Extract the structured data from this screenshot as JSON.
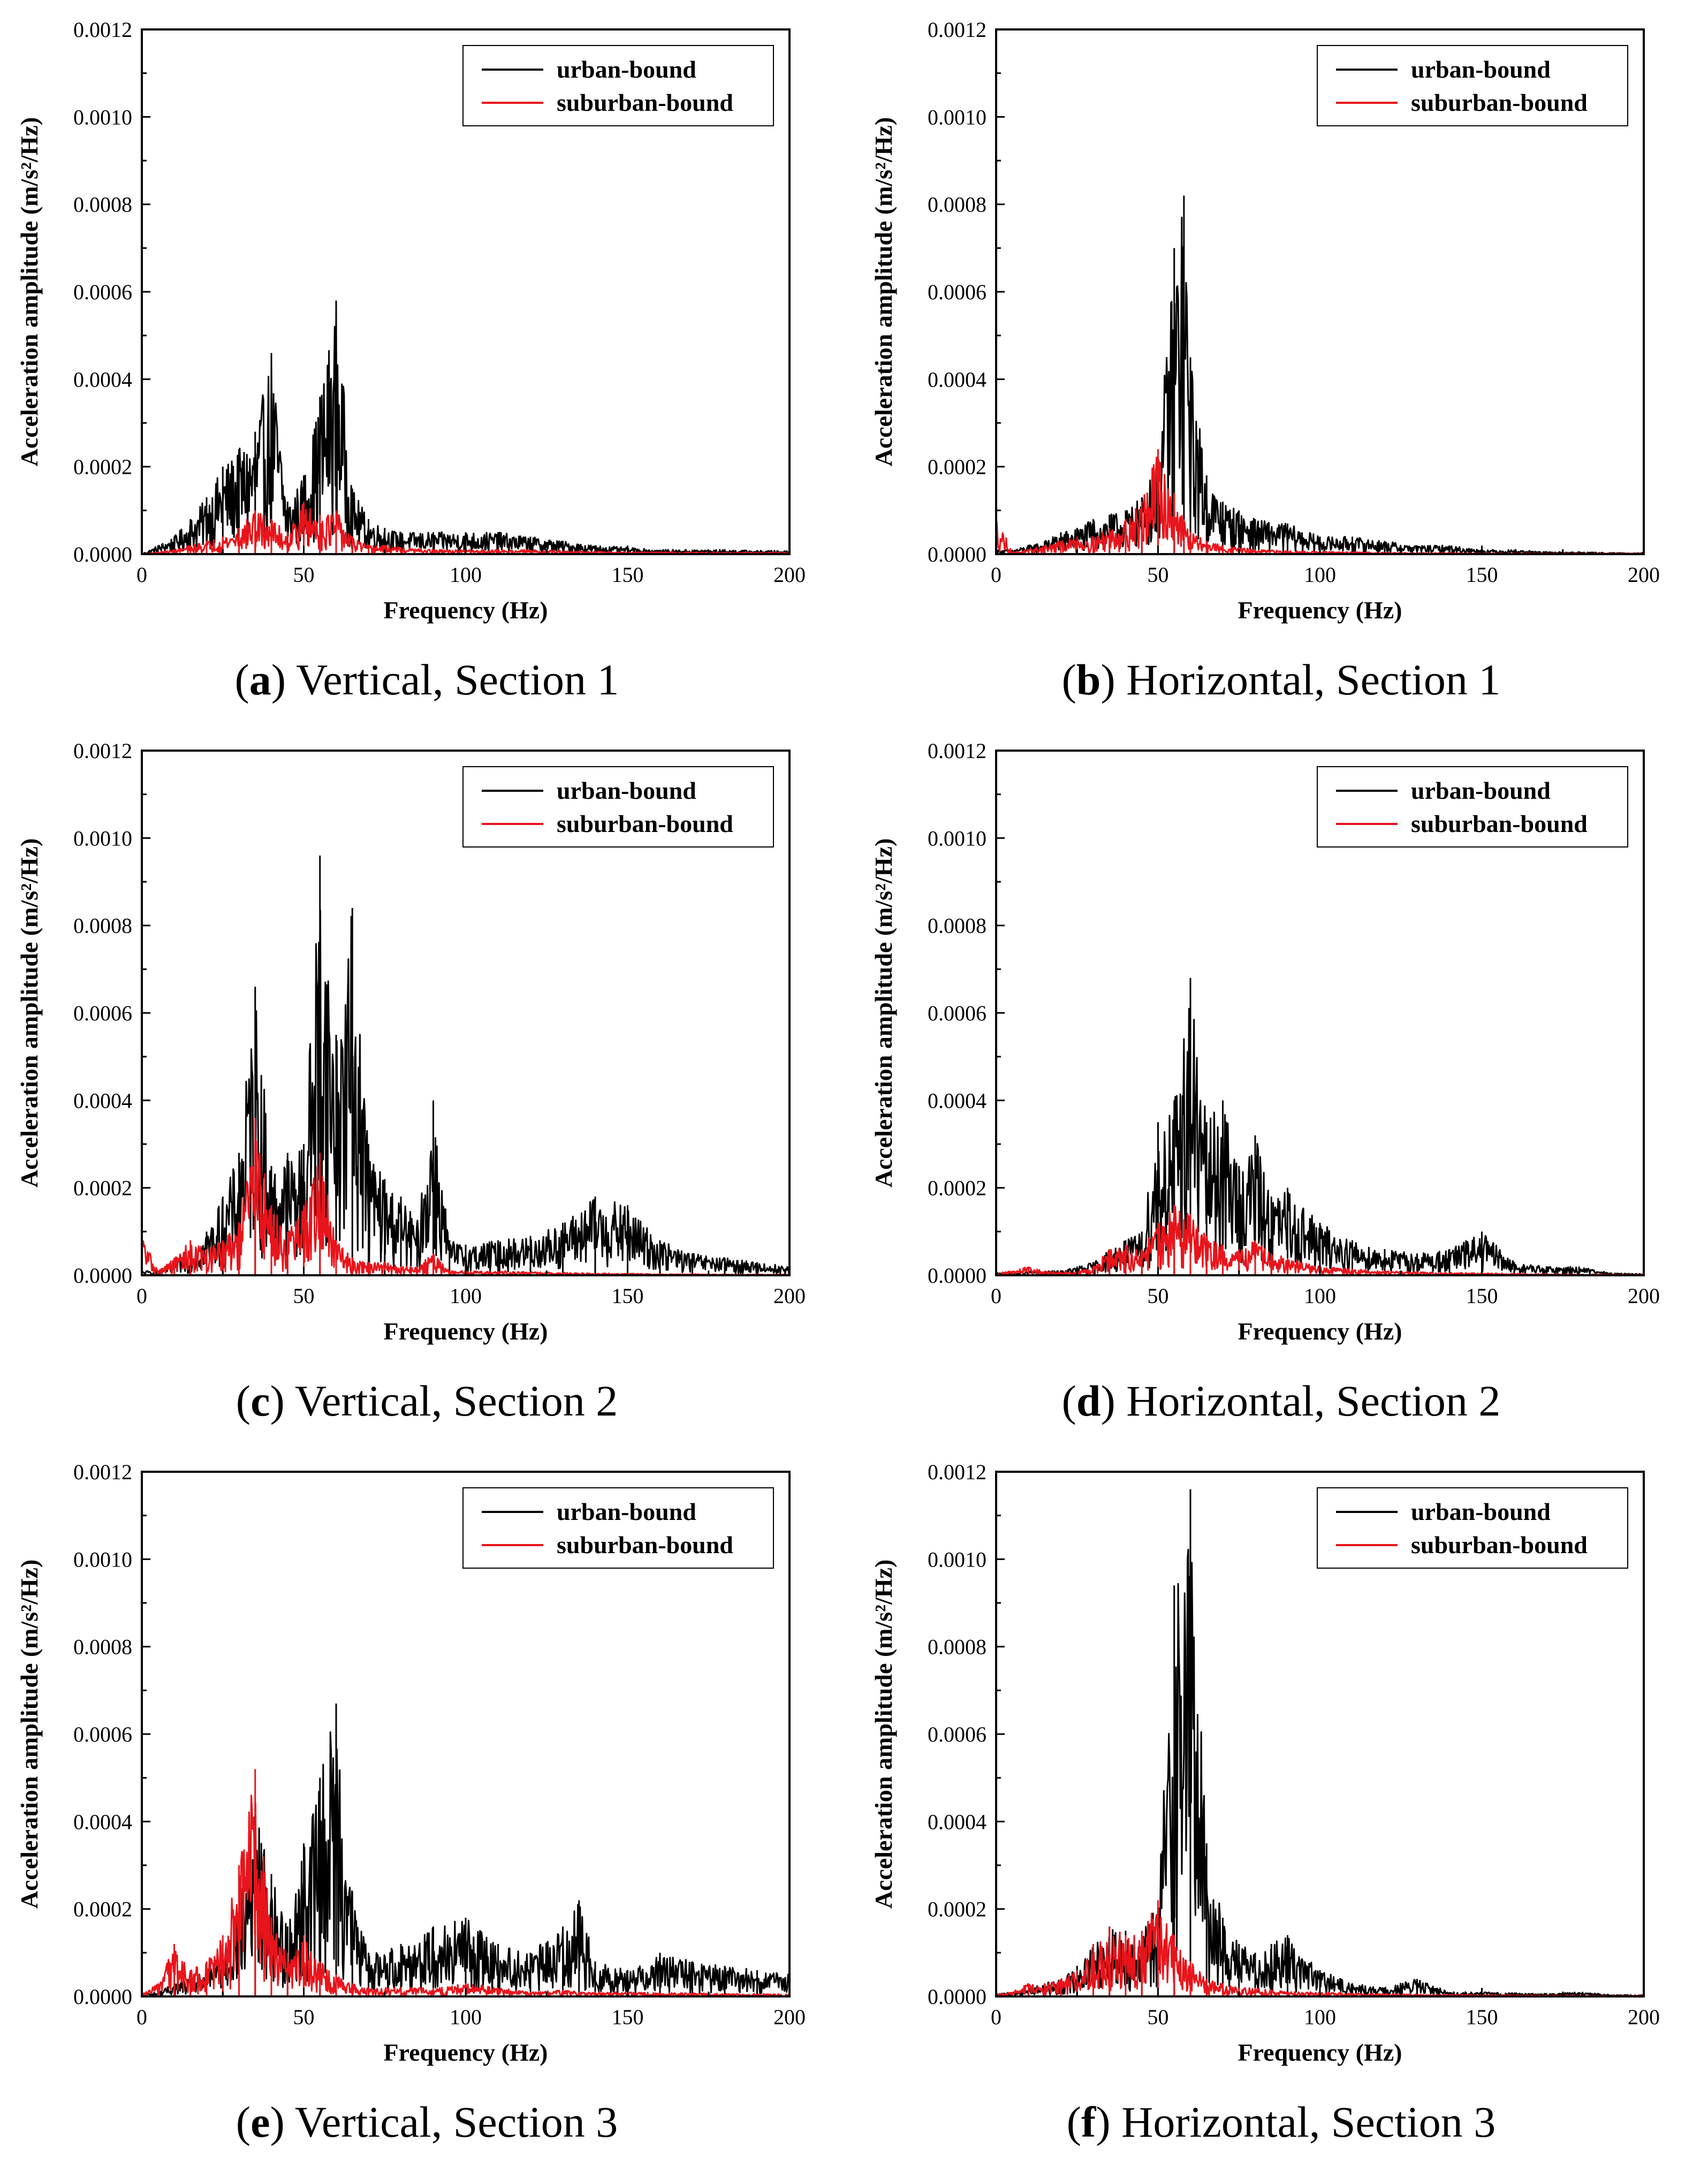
{
  "colors": {
    "urban": "#000000",
    "suburban": "#e8141b",
    "axes": "#000000",
    "background": "#ffffff"
  },
  "figure": {
    "panels": [
      {
        "id": "a",
        "caption": {
          "letter": "a",
          "text": "Vertical, Section 1"
        },
        "chart_data": {
          "type": "line",
          "title": "",
          "xlabel": "Frequency (Hz)",
          "ylabel": "Acceleration amplitude (m/s²/Hz)",
          "xlim": [
            0,
            200
          ],
          "ylim": [
            0,
            0.0012
          ],
          "x_ticks": [
            "0",
            "50",
            "100",
            "150",
            "200"
          ],
          "y_ticks": [
            "0.0000",
            "0.0002",
            "0.0004",
            "0.0006",
            "0.0008",
            "0.0010",
            "0.0012"
          ],
          "legend": {
            "position": "top-right",
            "entries": [
              "urban-bound",
              "suburban-bound"
            ]
          },
          "x": [
            0,
            5,
            10,
            15,
            20,
            25,
            30,
            35,
            40,
            45,
            50,
            55,
            60,
            65,
            70,
            75,
            80,
            90,
            100,
            110,
            120,
            130,
            140,
            150,
            160,
            170,
            180,
            190,
            200
          ],
          "series": [
            {
              "name": "urban-bound",
              "color": "#000000",
              "values": [
                0,
                2e-05,
                4e-05,
                8e-05,
                0.00013,
                0.0002,
                0.00024,
                0.00028,
                0.00046,
                0.00012,
                0.00018,
                0.00036,
                0.00058,
                0.00015,
                8e-05,
                6e-05,
                5e-05,
                5e-05,
                5e-05,
                5e-05,
                4e-05,
                3e-05,
                2e-05,
                1.5e-05,
                1e-05,
                1e-05,
                1e-05,
                8e-06,
                8e-06
              ]
            },
            {
              "name": "suburban-bound",
              "color": "#e8141b",
              "values": [
                0,
                5e-06,
                1e-05,
                2e-05,
                3e-05,
                4e-05,
                6e-05,
                0.0001,
                8e-05,
                5e-05,
                0.00012,
                9e-05,
                0.0001,
                4e-05,
                2e-05,
                2e-05,
                1.5e-05,
                1e-05,
                1e-05,
                1e-05,
                1e-05,
                8e-06,
                6e-06,
                5e-06,
                5e-06,
                5e-06,
                4e-06,
                4e-06,
                4e-06
              ]
            }
          ]
        }
      },
      {
        "id": "b",
        "caption": {
          "letter": "b",
          "text": "Horizontal, Section 1"
        },
        "chart_data": {
          "type": "line",
          "title": "",
          "xlabel": "Frequency (Hz)",
          "ylabel": "Acceleration amplitude (m/s²/Hz)",
          "xlim": [
            0,
            200
          ],
          "ylim": [
            0,
            0.0012
          ],
          "x_ticks": [
            "0",
            "50",
            "100",
            "150",
            "200"
          ],
          "y_ticks": [
            "0.0000",
            "0.0002",
            "0.0004",
            "0.0006",
            "0.0008",
            "0.0010",
            "0.0012"
          ],
          "legend": {
            "position": "top-right",
            "entries": [
              "urban-bound",
              "suburban-bound"
            ]
          },
          "x": [
            0,
            5,
            10,
            15,
            20,
            25,
            30,
            35,
            40,
            45,
            50,
            55,
            58,
            60,
            65,
            70,
            75,
            80,
            90,
            100,
            110,
            120,
            130,
            140,
            150,
            160,
            170,
            180,
            190,
            200
          ],
          "series": [
            {
              "name": "urban-bound",
              "color": "#000000",
              "values": [
                1e-05,
                1e-05,
                2e-05,
                3e-05,
                5e-05,
                6e-05,
                8e-05,
                9e-05,
                0.0001,
                0.00013,
                0.00022,
                0.0007,
                0.00082,
                0.00045,
                0.00018,
                0.00012,
                0.0001,
                8e-05,
                7e-05,
                4e-05,
                4e-05,
                3e-05,
                2e-05,
                2e-05,
                1e-05,
                1e-05,
                5e-06,
                5e-06,
                3e-06,
                3e-06
              ]
            },
            {
              "name": "suburban-bound",
              "color": "#e8141b",
              "values": [
                9e-05,
                5e-06,
                1e-05,
                2e-05,
                3e-05,
                4e-05,
                4e-05,
                6e-05,
                8e-05,
                0.00012,
                0.00024,
                0.00014,
                8e-05,
                5e-05,
                3e-05,
                2e-05,
                1.5e-05,
                1e-05,
                8e-06,
                6e-06,
                5e-06,
                4e-06,
                3e-06,
                3e-06,
                2e-06,
                2e-06,
                2e-06,
                2e-06,
                2e-06,
                2e-06
              ]
            }
          ]
        }
      },
      {
        "id": "c",
        "caption": {
          "letter": "c",
          "text": "Vertical, Section 2"
        },
        "chart_data": {
          "type": "line",
          "title": "",
          "xlabel": "Frequency (Hz)",
          "ylabel": "Acceleration amplitude (m/s²/Hz)",
          "xlim": [
            0,
            200
          ],
          "ylim": [
            0,
            0.0012
          ],
          "x_ticks": [
            "0",
            "50",
            "100",
            "150",
            "200"
          ],
          "y_ticks": [
            "0.0000",
            "0.0002",
            "0.0004",
            "0.0006",
            "0.0008",
            "0.0010",
            "0.0012"
          ],
          "legend": {
            "position": "top-right",
            "entries": [
              "urban-bound",
              "suburban-bound"
            ]
          },
          "x": [
            0,
            5,
            10,
            15,
            20,
            25,
            30,
            35,
            40,
            45,
            50,
            55,
            60,
            65,
            70,
            75,
            80,
            85,
            90,
            95,
            100,
            110,
            120,
            130,
            140,
            150,
            160,
            170,
            180,
            190,
            200
          ],
          "series": [
            {
              "name": "urban-bound",
              "color": "#000000",
              "values": [
                1e-05,
                1e-05,
                3e-05,
                6e-05,
                0.0001,
                0.00018,
                0.00028,
                0.00066,
                0.00025,
                0.00028,
                0.0003,
                0.00096,
                0.00055,
                0.00084,
                0.0003,
                0.00022,
                0.00018,
                0.00012,
                0.0004,
                8e-05,
                7e-05,
                8e-05,
                9e-05,
                0.00012,
                0.00018,
                0.00016,
                8e-05,
                5e-05,
                4e-05,
                3e-05,
                2e-05
              ]
            },
            {
              "name": "suburban-bound",
              "color": "#e8141b",
              "values": [
                0.0001,
                1e-05,
                4e-05,
                8e-05,
                6e-05,
                8e-05,
                0.00012,
                0.00036,
                0.00016,
                0.0001,
                0.00016,
                0.00028,
                8e-05,
                4e-05,
                3e-05,
                3e-05,
                2e-05,
                2e-05,
                5e-05,
                1e-05,
                1e-05,
                1e-05,
                8e-06,
                6e-06,
                5e-06,
                4e-06,
                3e-06,
                3e-06,
                2e-06,
                2e-06,
                2e-06
              ]
            }
          ]
        }
      },
      {
        "id": "d",
        "caption": {
          "letter": "d",
          "text": "Horizontal, Section 2"
        },
        "chart_data": {
          "type": "line",
          "title": "",
          "xlabel": "Frequency (Hz)",
          "ylabel": "Acceleration amplitude (m/s²/Hz)",
          "xlim": [
            0,
            200
          ],
          "ylim": [
            0,
            0.0012
          ],
          "x_ticks": [
            "0",
            "50",
            "100",
            "150",
            "200"
          ],
          "y_ticks": [
            "0.0000",
            "0.0002",
            "0.0004",
            "0.0006",
            "0.0008",
            "0.0010",
            "0.0012"
          ],
          "legend": {
            "position": "top-right",
            "entries": [
              "urban-bound",
              "suburban-bound"
            ]
          },
          "x": [
            0,
            5,
            10,
            15,
            20,
            25,
            30,
            35,
            40,
            45,
            50,
            55,
            60,
            65,
            70,
            75,
            80,
            85,
            90,
            100,
            110,
            120,
            130,
            140,
            150,
            160,
            170,
            180,
            190,
            200
          ],
          "series": [
            {
              "name": "urban-bound",
              "color": "#000000",
              "values": [
                5e-06,
                5e-06,
                1e-05,
                1e-05,
                1e-05,
                2e-05,
                3e-05,
                6e-05,
                8e-05,
                0.0001,
                0.00035,
                0.0004,
                0.00068,
                0.00035,
                0.0004,
                0.00025,
                0.00032,
                0.00018,
                0.0002,
                0.00012,
                8e-05,
                6e-05,
                5e-05,
                6e-05,
                0.0001,
                3e-05,
                2e-05,
                2e-05,
                5e-06,
                3e-06
              ]
            },
            {
              "name": "suburban-bound",
              "color": "#e8141b",
              "values": [
                5e-06,
                1e-05,
                2e-05,
                1e-05,
                8e-06,
                1e-05,
                2e-05,
                6e-05,
                7e-05,
                6e-05,
                0.00012,
                0.00016,
                0.00014,
                9e-05,
                7e-05,
                6e-05,
                8e-05,
                5e-05,
                4e-05,
                2e-05,
                1.5e-05,
                1e-05,
                8e-06,
                6e-06,
                5e-06,
                4e-06,
                3e-06,
                2e-06,
                2e-06,
                2e-06
              ]
            }
          ]
        }
      },
      {
        "id": "e",
        "caption": {
          "letter": "e",
          "text": "Vertical, Section 3"
        },
        "chart_data": {
          "type": "line",
          "title": "",
          "xlabel": "Frequency (Hz)",
          "ylabel": "Acceleration amplitude (m/s²/Hz)",
          "xlim": [
            0,
            200
          ],
          "ylim": [
            0,
            0.0012
          ],
          "x_ticks": [
            "0",
            "50",
            "100",
            "150",
            "200"
          ],
          "y_ticks": [
            "0.0000",
            "0.0002",
            "0.0004",
            "0.0006",
            "0.0008",
            "0.0010",
            "0.0012"
          ],
          "legend": {
            "position": "top-right",
            "entries": [
              "urban-bound",
              "suburban-bound"
            ]
          },
          "x": [
            0,
            5,
            10,
            15,
            20,
            25,
            30,
            35,
            40,
            45,
            50,
            55,
            60,
            65,
            70,
            80,
            90,
            100,
            110,
            120,
            130,
            135,
            140,
            150,
            160,
            170,
            180,
            190,
            200
          ],
          "series": [
            {
              "name": "urban-bound",
              "color": "#000000",
              "values": [
                5e-06,
                1e-05,
                3e-05,
                4e-05,
                6e-05,
                0.0001,
                0.0002,
                0.00044,
                0.00028,
                0.00016,
                0.00035,
                0.0005,
                0.00067,
                0.00024,
                0.0001,
                0.00012,
                0.00016,
                0.00018,
                0.00012,
                0.0001,
                0.00016,
                0.00022,
                8e-05,
                6e-05,
                0.0001,
                8e-05,
                7e-05,
                6e-05,
                5e-05
              ]
            },
            {
              "name": "suburban-bound",
              "color": "#e8141b",
              "values": [
                5e-06,
                3e-05,
                0.00012,
                6e-05,
                8e-05,
                0.00014,
                0.0003,
                0.00052,
                0.00018,
                0.0001,
                0.00014,
                8e-05,
                5e-05,
                3e-05,
                2e-05,
                2e-05,
                2e-05,
                3e-05,
                2e-05,
                1e-05,
                1.5e-05,
                1e-05,
                1e-05,
                1e-05,
                8e-06,
                8e-06,
                6e-06,
                6e-06,
                5e-06
              ]
            }
          ]
        }
      },
      {
        "id": "f",
        "caption": {
          "letter": "f",
          "text": "Horizontal, Section 3"
        },
        "chart_data": {
          "type": "line",
          "title": "",
          "xlabel": "Frequency (Hz)",
          "ylabel": "Acceleration amplitude (m/s²/Hz)",
          "xlim": [
            0,
            200
          ],
          "ylim": [
            0,
            0.0012
          ],
          "x_ticks": [
            "0",
            "50",
            "100",
            "150",
            "200"
          ],
          "y_ticks": [
            "0.0000",
            "0.0002",
            "0.0004",
            "0.0006",
            "0.0008",
            "0.0010",
            "0.0012"
          ],
          "legend": {
            "position": "top-right",
            "entries": [
              "urban-bound",
              "suburban-bound"
            ]
          },
          "x": [
            0,
            5,
            10,
            15,
            20,
            25,
            30,
            35,
            40,
            45,
            50,
            55,
            60,
            65,
            70,
            75,
            80,
            85,
            90,
            100,
            110,
            120,
            130,
            140,
            150,
            160,
            170,
            180,
            190,
            200
          ],
          "series": [
            {
              "name": "urban-bound",
              "color": "#000000",
              "values": [
                5e-06,
                1e-05,
                2e-05,
                3e-05,
                4e-05,
                7e-05,
                0.00012,
                0.00016,
                0.00015,
                0.00014,
                0.00022,
                0.00094,
                0.00116,
                0.00035,
                0.00018,
                0.00012,
                0.0001,
                0.00012,
                0.00014,
                6e-05,
                3e-05,
                2e-05,
                4e-05,
                1e-05,
                1e-05,
                8e-06,
                6e-06,
                1e-05,
                4e-06,
                3e-06
              ]
            },
            {
              "name": "suburban-bound",
              "color": "#e8141b",
              "values": [
                5e-06,
                1e-05,
                3e-05,
                3e-05,
                4e-05,
                6e-05,
                0.00012,
                0.00016,
                0.00014,
                0.00015,
                0.00022,
                0.00014,
                8e-05,
                4e-05,
                3e-05,
                2e-05,
                2e-05,
                1.5e-05,
                1e-05,
                1e-05,
                8e-06,
                6e-06,
                5e-06,
                4e-06,
                4e-06,
                3e-06,
                3e-06,
                2e-06,
                2e-06,
                2e-06
              ]
            }
          ]
        }
      }
    ]
  }
}
